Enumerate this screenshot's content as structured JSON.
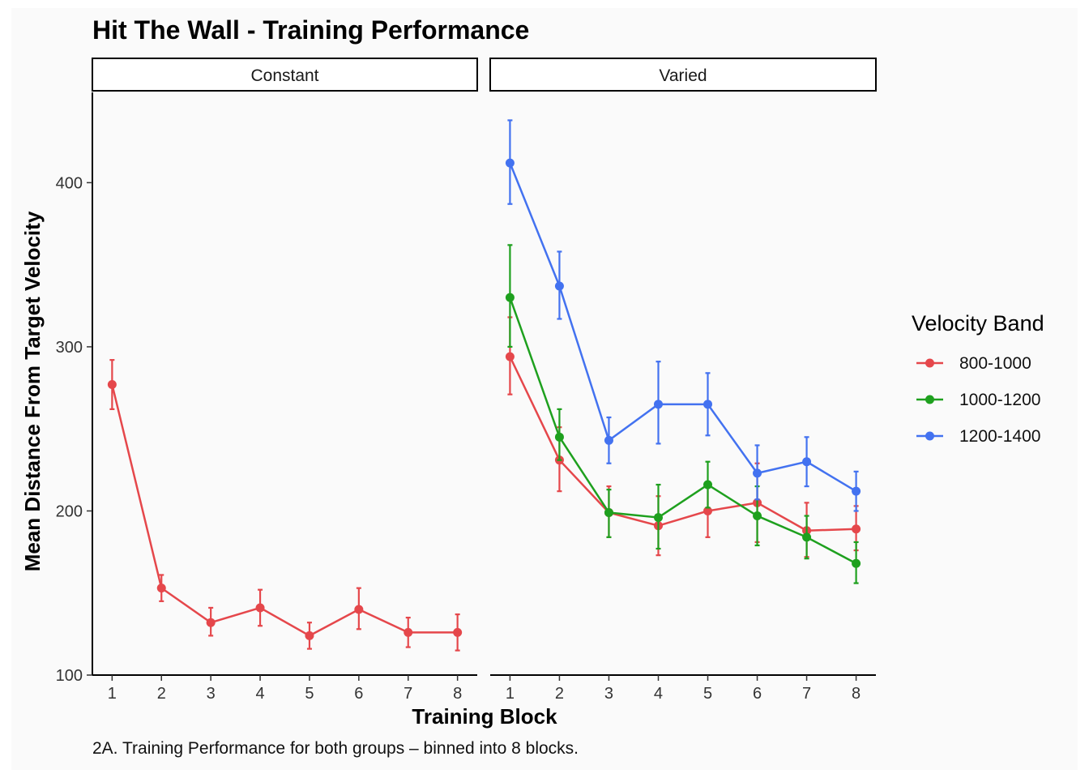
{
  "chart_data": {
    "type": "line",
    "title": "Hit The Wall - Training Performance",
    "xlabel": "Training Block",
    "ylabel": "Mean Distance From Target Velocity",
    "caption": "2A. Training Performance for both groups – binned into 8 blocks.",
    "x_ticks": [
      "1",
      "2",
      "3",
      "4",
      "5",
      "6",
      "7",
      "8"
    ],
    "y_ticks": [
      100,
      200,
      300,
      400
    ],
    "ylim": [
      100,
      455
    ],
    "xlim": [
      0.6,
      8.4
    ],
    "grid": false,
    "legend": {
      "title": "Velocity Band",
      "placement": "right",
      "entries": [
        "800-1000",
        "1000-1200",
        "1200-1400"
      ]
    },
    "colors": {
      "800-1000": "#e5474b",
      "1000-1200": "#1ea01e",
      "1200-1400": "#4372f0"
    },
    "panels": [
      {
        "label": "Constant",
        "series": [
          {
            "name": "800-1000",
            "x": [
              1,
              2,
              3,
              4,
              5,
              6,
              7,
              8
            ],
            "y": [
              277,
              153,
              132,
              141,
              124,
              140,
              126,
              126
            ],
            "err_low": [
              262,
              145,
              124,
              130,
              116,
              128,
              117,
              115
            ],
            "err_high": [
              292,
              161,
              141,
              152,
              132,
              153,
              135,
              137
            ]
          }
        ]
      },
      {
        "label": "Varied",
        "series": [
          {
            "name": "800-1000",
            "x": [
              1,
              2,
              3,
              4,
              5,
              6,
              7,
              8
            ],
            "y": [
              294,
              231,
              199,
              191,
              200,
              205,
              188,
              189
            ],
            "err_low": [
              271,
              212,
              184,
              173,
              184,
              181,
              172,
              176
            ],
            "err_high": [
              318,
              251,
              215,
              209,
              216,
              229,
              205,
              203
            ]
          },
          {
            "name": "1000-1200",
            "x": [
              1,
              2,
              3,
              4,
              5,
              6,
              7,
              8
            ],
            "y": [
              330,
              245,
              199,
              196,
              216,
              197,
              184,
              168
            ],
            "err_low": [
              300,
              231,
              184,
              177,
              202,
              179,
              171,
              156
            ],
            "err_high": [
              362,
              262,
              213,
              216,
              230,
              215,
              197,
              181
            ]
          },
          {
            "name": "1200-1400",
            "x": [
              1,
              2,
              3,
              4,
              5,
              6,
              7,
              8
            ],
            "y": [
              412,
              337,
              243,
              265,
              265,
              223,
              230,
              212
            ],
            "err_low": [
              387,
              317,
              229,
              241,
              246,
              207,
              215,
              200
            ],
            "err_high": [
              438,
              358,
              257,
              291,
              284,
              240,
              245,
              224
            ]
          }
        ]
      }
    ]
  }
}
